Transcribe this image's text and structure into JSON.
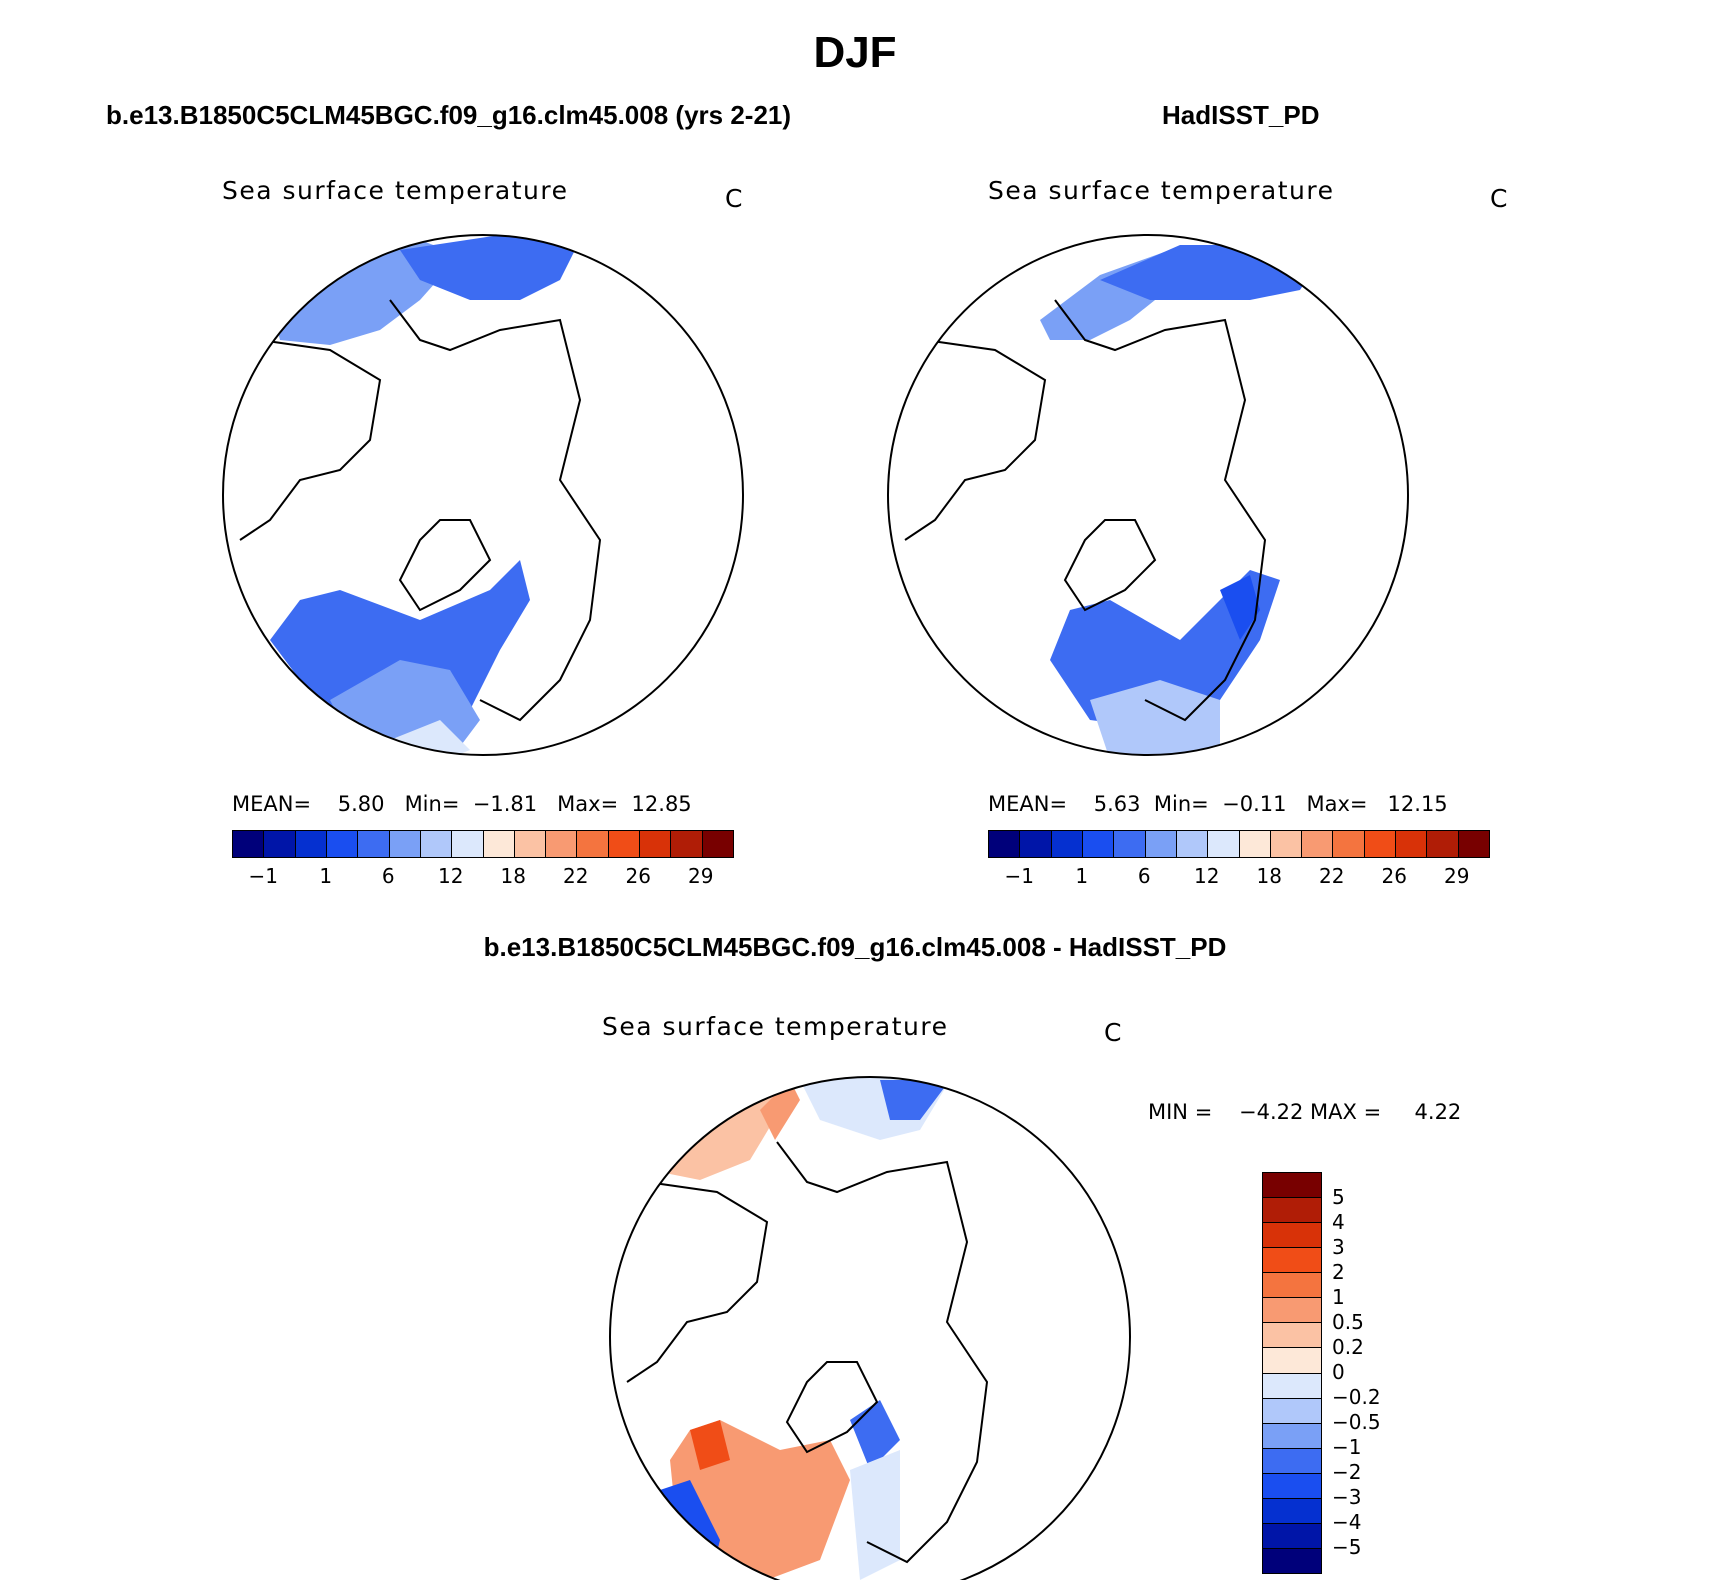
{
  "title": "DJF",
  "panels": {
    "model": {
      "case_title": "b.e13.B1850C5CLM45BGC.f09_g16.clm45.008 (yrs 2-21)",
      "plot_title": "Sea surface temperature",
      "units": "C",
      "mean_label": "MEAN=",
      "mean": "5.80",
      "min_label": "Min=",
      "min": "−1.81",
      "max_label": "Max=",
      "max": "12.85"
    },
    "obs": {
      "case_title": "HadISST_PD",
      "plot_title": "Sea surface temperature",
      "units": "C",
      "mean_label": "MEAN=",
      "mean": "5.63",
      "min_label": "Min=",
      "min": "−0.11",
      "max_label": "Max=",
      "max": "12.15"
    },
    "diff": {
      "case_title": "b.e13.B1850C5CLM45BGC.f09_g16.clm45.008 - HadISST_PD",
      "plot_title": "Sea surface temperature",
      "units": "C",
      "minmax_text": "MIN =    −4.22 MAX =     4.22"
    }
  },
  "colorbar_main": {
    "colors": [
      "#00007a",
      "#0015a8",
      "#0530d0",
      "#1a4ef0",
      "#3d6cf2",
      "#7aa0f6",
      "#b0c8fa",
      "#dce8fc",
      "#fde8d8",
      "#fbc2a4",
      "#f89a72",
      "#f4743f",
      "#f04d17",
      "#d83208",
      "#b01d06",
      "#780000"
    ],
    "tick_labels": [
      "−1",
      "1",
      "6",
      "12",
      "18",
      "22",
      "26",
      "29"
    ]
  },
  "colorbar_diff": {
    "colors_top_to_bottom": [
      "#780000",
      "#b01d06",
      "#d83208",
      "#f04d17",
      "#f4743f",
      "#f89a72",
      "#fbc2a4",
      "#fde8d8",
      "#dce8fc",
      "#b0c8fa",
      "#7aa0f6",
      "#3d6cf2",
      "#1a4ef0",
      "#0530d0",
      "#0015a8",
      "#00007a"
    ],
    "tick_labels": [
      "5",
      "4",
      "3",
      "2",
      "1",
      "0.5",
      "0.2",
      "0",
      "−0.2",
      "−0.5",
      "−1",
      "−2",
      "−3",
      "−4",
      "−5"
    ]
  },
  "map_fill": {
    "deep": "#1a4ef0",
    "mid": "#3d6cf2",
    "light": "#7aa0f6",
    "pale": "#b0c8fa",
    "palest": "#dce8fc",
    "warm1": "#fbc2a4",
    "warm2": "#f89a72",
    "warm3": "#f4743f",
    "warm4": "#f04d17"
  }
}
